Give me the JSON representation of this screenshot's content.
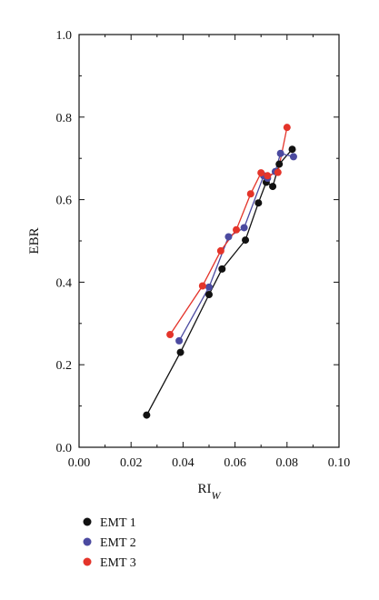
{
  "chart_data": {
    "type": "scatter",
    "xlabel": "RI",
    "xlabel_subscript": "W",
    "ylabel": "EBR",
    "xlim": [
      0,
      0.1
    ],
    "ylim": [
      0,
      1.0
    ],
    "x_ticks": [
      "0.00",
      "0.02",
      "0.04",
      "0.06",
      "0.08",
      "0.10"
    ],
    "y_ticks": [
      "0.0",
      "0.2",
      "0.4",
      "0.6",
      "0.8",
      "1.0"
    ],
    "grid": false,
    "legend_position": "bottom-left",
    "series": [
      {
        "name": "EMT 1",
        "color": "#111111",
        "points": [
          [
            0.026,
            0.078
          ],
          [
            0.039,
            0.23
          ],
          [
            0.05,
            0.37
          ],
          [
            0.055,
            0.432
          ],
          [
            0.064,
            0.502
          ],
          [
            0.069,
            0.592
          ],
          [
            0.072,
            0.642
          ],
          [
            0.0745,
            0.632
          ],
          [
            0.077,
            0.686
          ],
          [
            0.082,
            0.722
          ]
        ]
      },
      {
        "name": "EMT 2",
        "color": "#4b4aa0",
        "points": [
          [
            0.0385,
            0.258
          ],
          [
            0.05,
            0.388
          ],
          [
            0.0575,
            0.51
          ],
          [
            0.0635,
            0.532
          ],
          [
            0.071,
            0.658
          ],
          [
            0.0725,
            0.652
          ],
          [
            0.0755,
            0.668
          ],
          [
            0.0775,
            0.712
          ],
          [
            0.0825,
            0.704
          ]
        ]
      },
      {
        "name": "EMT 3",
        "color": "#e4342a",
        "points": [
          [
            0.035,
            0.273
          ],
          [
            0.0475,
            0.391
          ],
          [
            0.0545,
            0.476
          ],
          [
            0.0605,
            0.527
          ],
          [
            0.066,
            0.614
          ],
          [
            0.07,
            0.665
          ],
          [
            0.0725,
            0.658
          ],
          [
            0.0765,
            0.666
          ],
          [
            0.08,
            0.775
          ]
        ]
      }
    ]
  }
}
